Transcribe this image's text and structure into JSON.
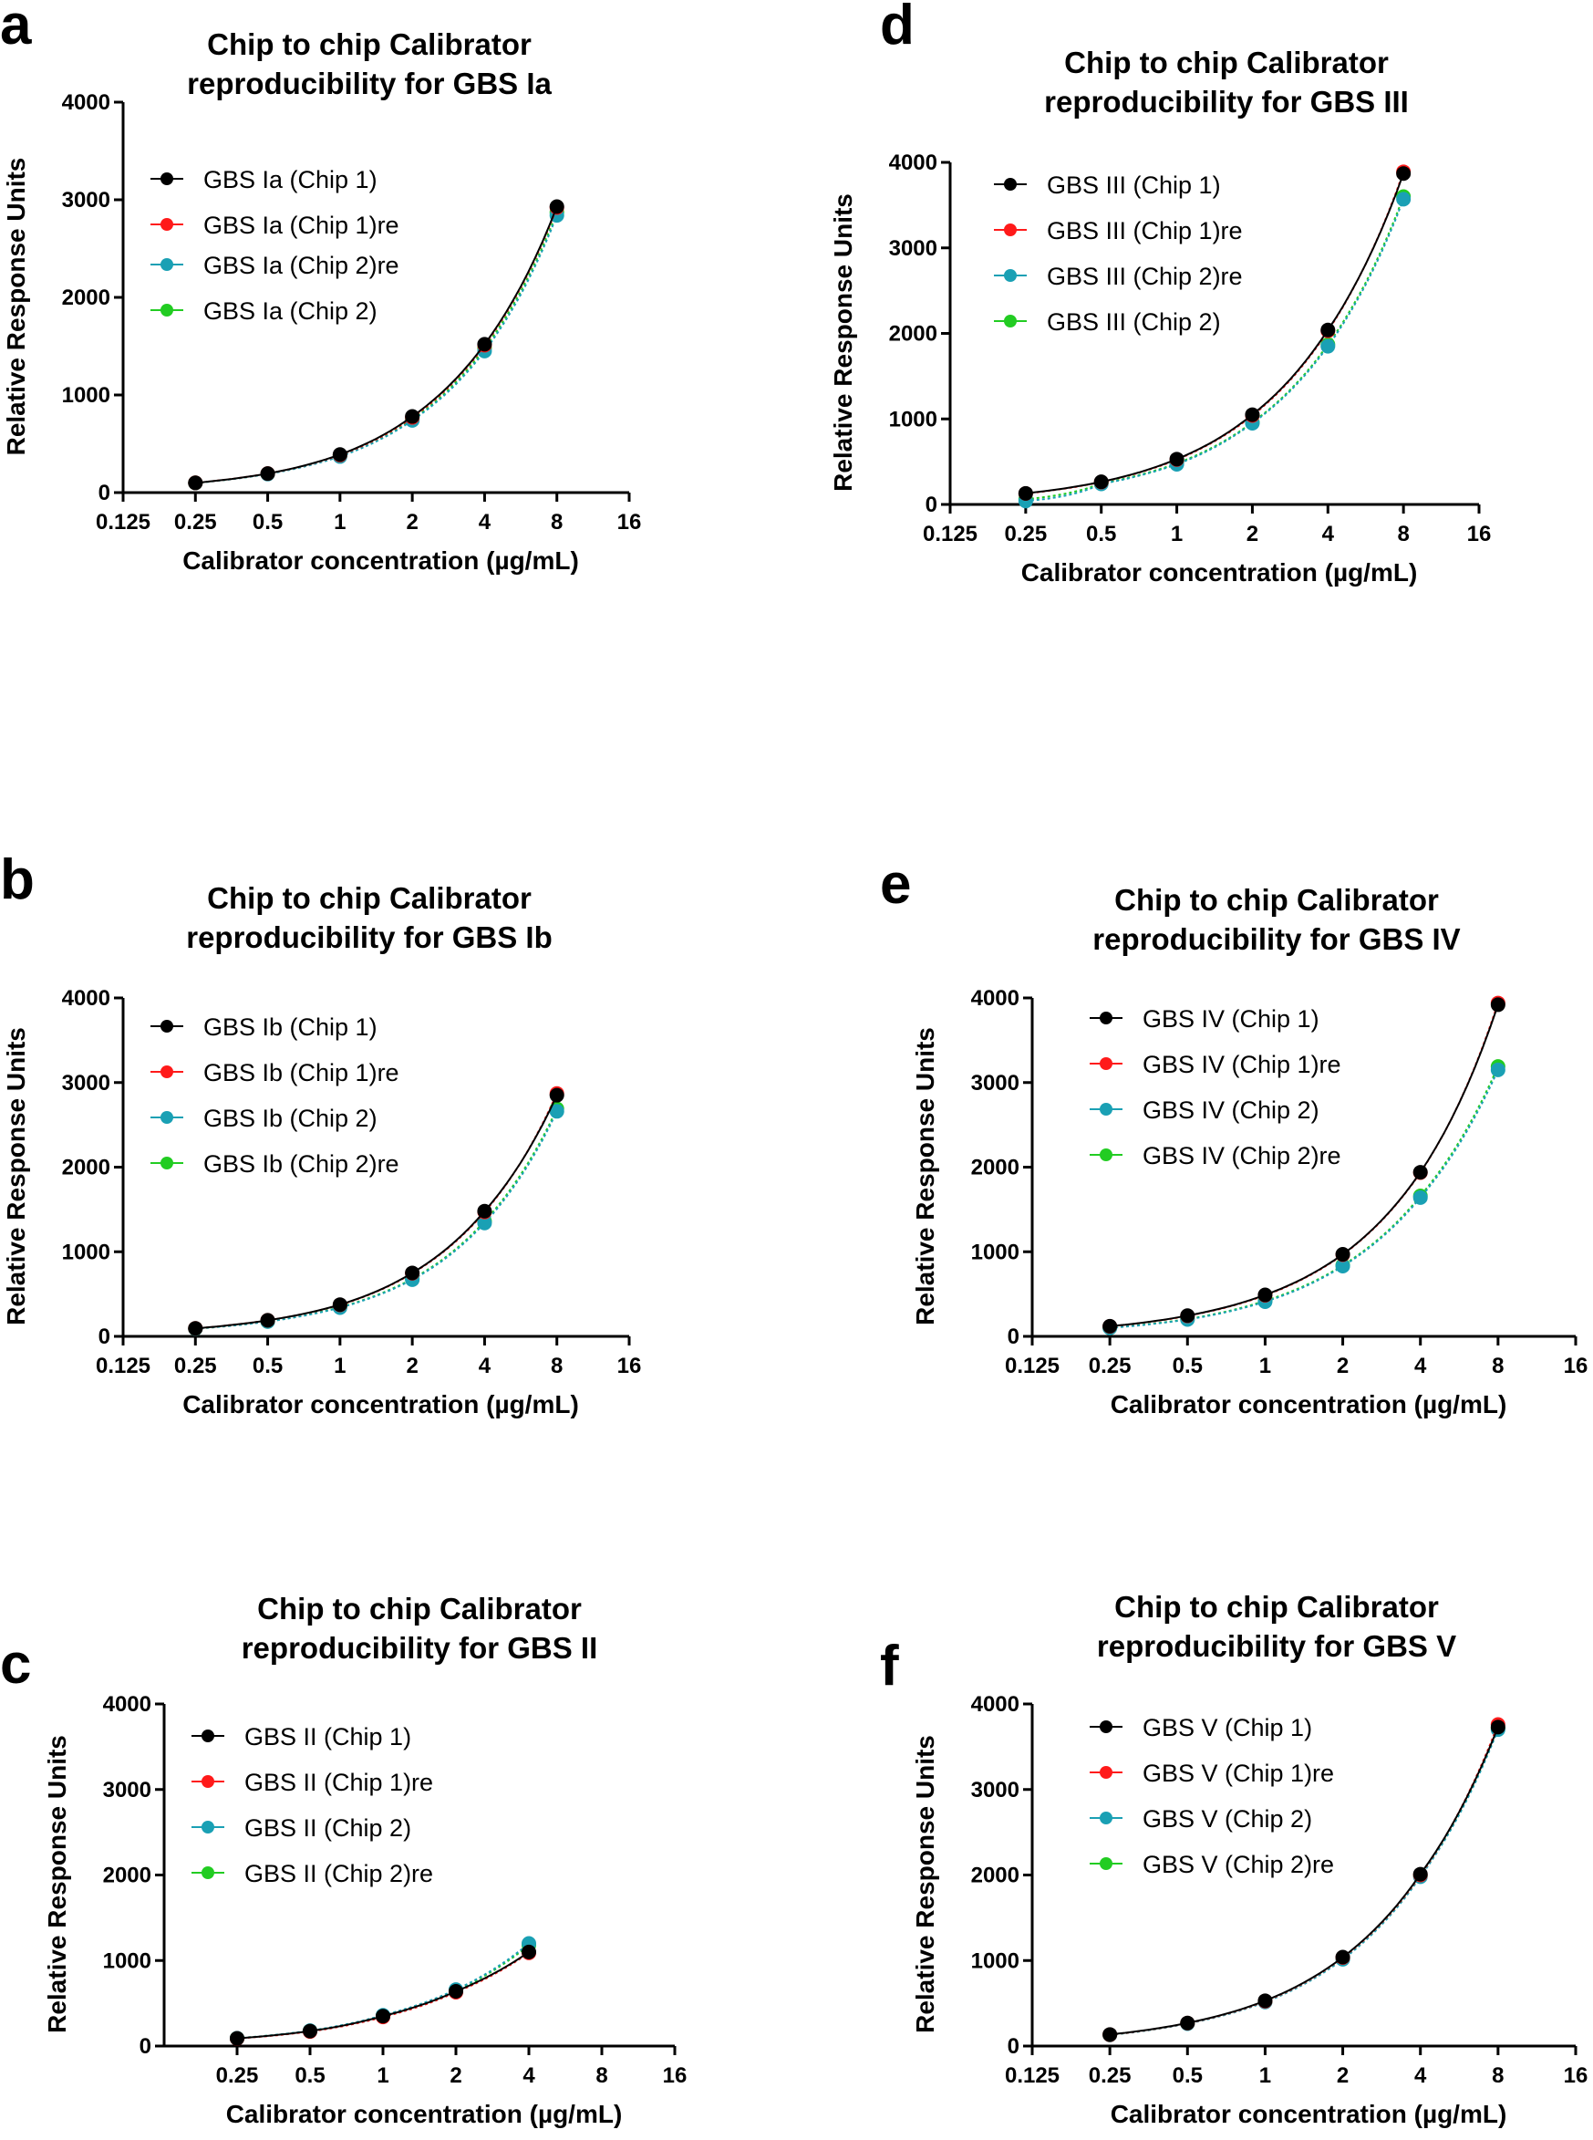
{
  "figure": {
    "shared": {
      "xlabel": "Calibrator concentration (µg/mL)",
      "ylabel": "Relative Response Units"
    },
    "series_colors": [
      "#000000",
      "#ff1a1a",
      "#1aa0b4",
      "#22cc22"
    ]
  },
  "chart_data": [
    {
      "id": "a",
      "type": "line",
      "panel_letter": "a",
      "title": "Chip to chip Calibrator reproducibility for GBS Ia",
      "title_lines": [
        "Chip to chip Calibrator",
        "reproducibility for GBS Ia"
      ],
      "xlabel": "Calibrator concentration (µg/mL)",
      "ylabel": "Relative Response Units",
      "xscale": "log2",
      "xlim": [
        0.125,
        16
      ],
      "ylim": [
        0,
        4000
      ],
      "x_ticks": [
        "0.125",
        "0.25",
        "0.5",
        "1",
        "2",
        "4",
        "8",
        "16"
      ],
      "y_ticks": [
        "0",
        "1000",
        "2000",
        "3000",
        "4000"
      ],
      "x": [
        0.25,
        0.5,
        1,
        2,
        4,
        8
      ],
      "legend_position": "top-left",
      "series": [
        {
          "name": "GBS Ia (Chip 1)",
          "values": [
            100,
            195,
            390,
            780,
            1520,
            2930
          ]
        },
        {
          "name": "GBS Ia (Chip 1)re",
          "values": [
            100,
            195,
            385,
            770,
            1510,
            2920
          ]
        },
        {
          "name": "GBS Ia (Chip 2)re",
          "values": [
            98,
            190,
            370,
            740,
            1450,
            2840
          ]
        },
        {
          "name": "GBS Ia (Chip 2)",
          "values": [
            99,
            192,
            375,
            750,
            1480,
            2870
          ]
        }
      ]
    },
    {
      "id": "b",
      "type": "line",
      "panel_letter": "b",
      "title": "Chip to chip Calibrator reproducibility for GBS Ib",
      "title_lines": [
        "Chip to chip Calibrator",
        "reproducibility for GBS Ib"
      ],
      "xlabel": "Calibrator concentration (µg/mL)",
      "ylabel": "Relative Response Units",
      "xscale": "log2",
      "xlim": [
        0.125,
        16
      ],
      "ylim": [
        0,
        4000
      ],
      "x_ticks": [
        "0.125",
        "0.25",
        "0.5",
        "1",
        "2",
        "4",
        "8",
        "16"
      ],
      "y_ticks": [
        "0",
        "1000",
        "2000",
        "3000",
        "4000"
      ],
      "x": [
        0.25,
        0.5,
        1,
        2,
        4,
        8
      ],
      "legend_position": "top-left",
      "series": [
        {
          "name": "GBS Ib (Chip 1)",
          "values": [
            95,
            190,
            375,
            750,
            1480,
            2850
          ]
        },
        {
          "name": "GBS Ib (Chip 1)re",
          "values": [
            95,
            190,
            372,
            745,
            1470,
            2870
          ]
        },
        {
          "name": "GBS Ib (Chip 2)",
          "values": [
            90,
            175,
            340,
            670,
            1340,
            2660
          ]
        },
        {
          "name": "GBS Ib (Chip 2)re",
          "values": [
            91,
            177,
            345,
            680,
            1360,
            2690
          ]
        }
      ]
    },
    {
      "id": "c",
      "type": "line",
      "panel_letter": "c",
      "title": "Chip to chip Calibrator reproducibility for GBS II",
      "title_lines": [
        "Chip to chip Calibrator",
        "reproducibility for GBS II"
      ],
      "xlabel": "Calibrator concentration (µg/mL)",
      "ylabel": "Relative Response Units",
      "xscale": "log2",
      "xlim": [
        0.125,
        16
      ],
      "ylim": [
        0,
        4000
      ],
      "x_ticks": [
        "0.25",
        "0.5",
        "1",
        "2",
        "4",
        "8",
        "16"
      ],
      "y_ticks": [
        "0",
        "1000",
        "2000",
        "3000",
        "4000"
      ],
      "x": [
        0.25,
        0.5,
        1,
        2,
        4
      ],
      "legend_position": "top-left",
      "series": [
        {
          "name": "GBS II (Chip 1)",
          "values": [
            90,
            175,
            350,
            640,
            1100
          ]
        },
        {
          "name": "GBS II (Chip 1)re",
          "values": [
            88,
            170,
            340,
            630,
            1090
          ]
        },
        {
          "name": "GBS II (Chip 2)",
          "values": [
            92,
            180,
            360,
            660,
            1200
          ]
        },
        {
          "name": "GBS II (Chip 2)re",
          "values": [
            91,
            178,
            355,
            650,
            1180
          ]
        }
      ]
    },
    {
      "id": "d",
      "type": "line",
      "panel_letter": "d",
      "title": "Chip to chip Calibrator reproducibility for GBS III",
      "title_lines": [
        "Chip to chip Calibrator",
        "reproducibility for GBS III"
      ],
      "xlabel": "Calibrator concentration (µg/mL)",
      "ylabel": "Relative Response Units",
      "xscale": "log2",
      "xlim": [
        0.125,
        16
      ],
      "ylim": [
        0,
        4000
      ],
      "x_ticks": [
        "0.125",
        "0.25",
        "0.5",
        "1",
        "2",
        "4",
        "8",
        "16"
      ],
      "y_ticks": [
        "0",
        "1000",
        "2000",
        "3000",
        "4000"
      ],
      "x": [
        0.25,
        0.5,
        1,
        2,
        4,
        8
      ],
      "legend_position": "top-left",
      "series": [
        {
          "name": "GBS III (Chip 1)",
          "values": [
            130,
            265,
            530,
            1050,
            2040,
            3870
          ]
        },
        {
          "name": "GBS III (Chip 1)re",
          "values": [
            128,
            262,
            525,
            1040,
            2030,
            3890
          ]
        },
        {
          "name": "GBS III (Chip 2)re",
          "values": [
            40,
            240,
            470,
            950,
            1850,
            3570
          ]
        },
        {
          "name": "GBS III (Chip 2)",
          "values": [
            60,
            245,
            480,
            960,
            1870,
            3600
          ]
        }
      ]
    },
    {
      "id": "e",
      "type": "line",
      "panel_letter": "e",
      "title": "Chip to chip Calibrator reproducibility for GBS IV",
      "title_lines": [
        "Chip to chip Calibrator",
        "reproducibility for GBS IV"
      ],
      "xlabel": "Calibrator concentration (µg/mL)",
      "ylabel": "Relative Response Units",
      "xscale": "log2",
      "xlim": [
        0.125,
        16
      ],
      "ylim": [
        0,
        4000
      ],
      "x_ticks": [
        "0.125",
        "0.25",
        "0.5",
        "1",
        "2",
        "4",
        "8",
        "16"
      ],
      "y_ticks": [
        "0",
        "1000",
        "2000",
        "3000",
        "4000"
      ],
      "x": [
        0.25,
        0.5,
        1,
        2,
        4,
        8
      ],
      "legend_position": "top-left",
      "series": [
        {
          "name": "GBS IV (Chip 1)",
          "values": [
            120,
            245,
            490,
            970,
            1940,
            3920
          ]
        },
        {
          "name": "GBS IV (Chip 1)re",
          "values": [
            118,
            242,
            485,
            965,
            1935,
            3940
          ]
        },
        {
          "name": "GBS IV (Chip 2)",
          "values": [
            100,
            200,
            410,
            830,
            1640,
            3150
          ]
        },
        {
          "name": "GBS IV (Chip 2)re",
          "values": [
            102,
            205,
            420,
            840,
            1660,
            3190
          ]
        }
      ]
    },
    {
      "id": "f",
      "type": "line",
      "panel_letter": "f",
      "title": "Chip to chip Calibrator reproducibility for GBS V",
      "title_lines": [
        "Chip to chip Calibrator",
        "reproducibility for GBS V"
      ],
      "xlabel": "Calibrator concentration (µg/mL)",
      "ylabel": "Relative Response Units",
      "xscale": "log2",
      "xlim": [
        0.125,
        16
      ],
      "ylim": [
        0,
        4000
      ],
      "x_ticks": [
        "0.125",
        "0.25",
        "0.5",
        "1",
        "2",
        "4",
        "8",
        "16"
      ],
      "y_ticks": [
        "0",
        "1000",
        "2000",
        "3000",
        "4000"
      ],
      "x": [
        0.25,
        0.5,
        1,
        2,
        4,
        8
      ],
      "legend_position": "top-left",
      "series": [
        {
          "name": "GBS V (Chip 1)",
          "values": [
            135,
            270,
            530,
            1040,
            2010,
            3730
          ]
        },
        {
          "name": "GBS V (Chip 1)re",
          "values": [
            133,
            268,
            525,
            1035,
            2000,
            3760
          ]
        },
        {
          "name": "GBS V (Chip 2)",
          "values": [
            130,
            262,
            515,
            1015,
            1980,
            3700
          ]
        },
        {
          "name": "GBS V (Chip 2)re",
          "values": [
            131,
            265,
            520,
            1025,
            1990,
            3720
          ]
        }
      ]
    }
  ]
}
